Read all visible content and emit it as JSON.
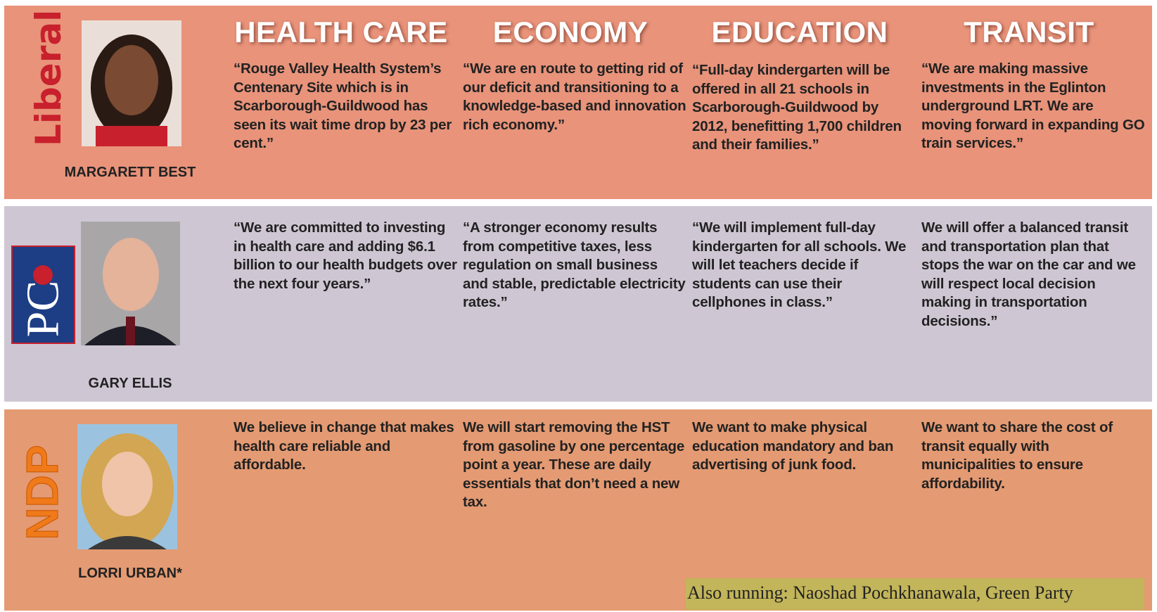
{
  "headers": [
    "HEALTH CARE",
    "ECONOMY",
    "EDUCATION",
    "TRANSIT"
  ],
  "rows": [
    {
      "party": "Liberal",
      "candidate": "MARGARETT BEST",
      "quotes": [
        "“Rouge Valley Health System’s Centenary Site which is in Scarborough-Guildwood has seen its wait time drop by 23 per cent.”",
        "“We are en route to getting rid of our deficit and transitioning to a knowledge-based and innovation rich economy.”",
        "“Full-day kindergarten will be offered in all 21 schools in Scarborough-Guildwood by 2012, benefitting 1,700 children and their families.”",
        "“We are making massive investments in the Eglinton underground LRT. We are moving forward in expanding GO train services.”"
      ]
    },
    {
      "party": "PC",
      "candidate": "GARY ELLIS",
      "quotes": [
        "“We are committed to investing in health care and adding $6.1 billion to our health budgets over the next four years.”",
        "“A stronger economy results from competitive taxes, less regulation on small business and stable, predictable electricity rates.”",
        "“We will implement full-day kindergarten for all schools. We will let teachers decide if students can use their cellphones in class.”",
        "We will offer a balanced transit and transportation plan that stops the war on the car and we will respect local decision making in transportation decisions.”"
      ]
    },
    {
      "party": "NDP",
      "candidate": "LORRI URBAN*",
      "quotes": [
        "We believe in change that makes health care reliable and affordable.",
        "We will start removing the HST from gasoline by one percentage point a year. These are daily essentials that don’t need a new tax.",
        "We want to make physical education mandatory and ban advertising of junk food.",
        "We want to share the cost of transit equally with municipalities to ensure affordability."
      ]
    }
  ],
  "footnote": "Also running: Naoshad Pochkhanawala, Green Party"
}
